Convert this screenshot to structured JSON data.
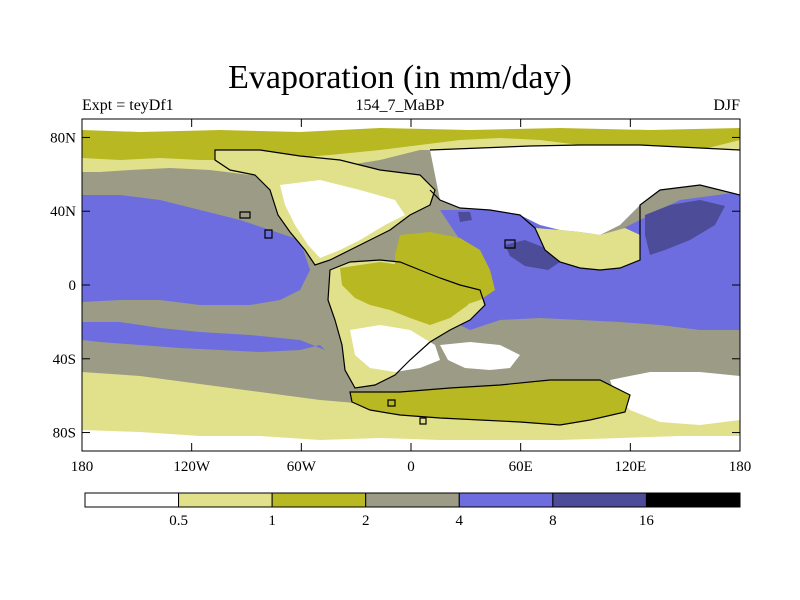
{
  "map": {
    "title": "Evaporation (in mm/day)",
    "subtitle_left": "Expt = teyDf1",
    "subtitle_center": "154_7_MaBP",
    "subtitle_right": "DJF",
    "x_ticks": [
      "180",
      "120W",
      "60W",
      "0",
      "60E",
      "120E",
      "180"
    ],
    "y_ticks": [
      "80N",
      "40N",
      "0",
      "40S",
      "80S"
    ]
  },
  "legend": {
    "levels": [
      "0.5",
      "1",
      "2",
      "4",
      "8",
      "16"
    ],
    "colors": [
      "#ffffff",
      "#e1e18c",
      "#b8b823",
      "#9b9b86",
      "#6d6de0",
      "#4c4c99",
      "#000000"
    ]
  }
}
